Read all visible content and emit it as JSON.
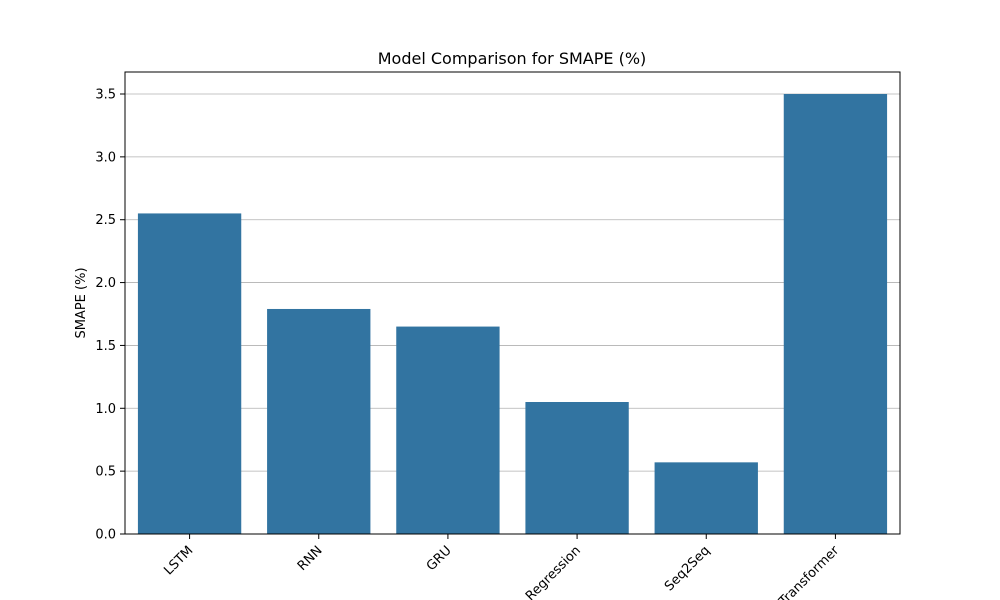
{
  "chart_data": {
    "type": "bar",
    "title": "Model Comparison for SMAPE (%)",
    "xlabel": "",
    "ylabel": "SMAPE (%)",
    "categories": [
      "LSTM",
      "RNN",
      "GRU",
      "Regression",
      "Seq2Seq",
      "Transformer"
    ],
    "values": [
      2.55,
      1.79,
      1.65,
      1.05,
      0.57,
      3.5
    ],
    "ylim": [
      0,
      3.675
    ],
    "yticks": [
      "0.0",
      "0.5",
      "1.0",
      "1.5",
      "2.0",
      "2.5",
      "3.0",
      "3.5"
    ],
    "grid": "horizontal",
    "bar_color": "#3274a1",
    "grid_color": "#b0b0b0"
  }
}
